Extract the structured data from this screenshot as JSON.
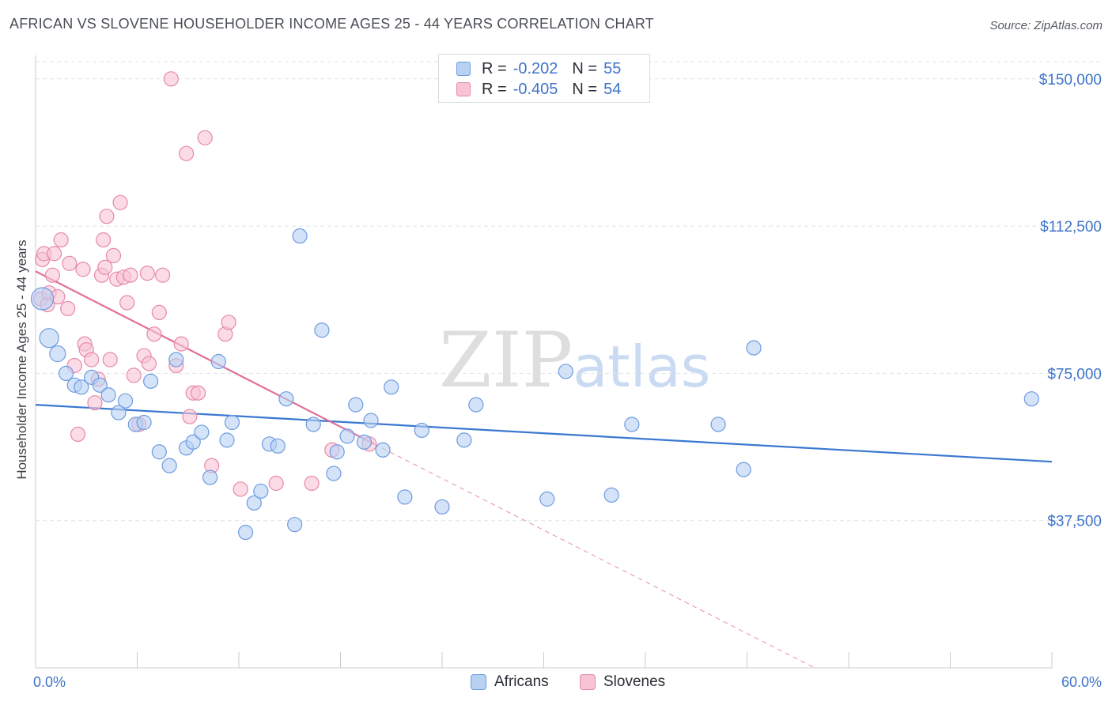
{
  "title": "AFRICAN VS SLOVENE HOUSEHOLDER INCOME AGES 25 - 44 YEARS CORRELATION CHART",
  "source": "Source: ZipAtlas.com",
  "watermark": {
    "zip": "ZIP",
    "atlas": "atlas"
  },
  "legend": {
    "rows": [
      {
        "r_label": "R =",
        "r_value": "-0.202",
        "n_label": "N =",
        "n_value": "55"
      },
      {
        "r_label": "R =",
        "r_value": "-0.405",
        "n_label": "N =",
        "n_value": "54"
      }
    ]
  },
  "bottom_legend": [
    "Africans",
    "Slovenes"
  ],
  "colors": {
    "africans_fill": "#b8d1f3",
    "africans_stroke": "#6d9be0",
    "africans_line": "#3a78d0",
    "slovenes_fill": "#f8c3d4",
    "slovenes_stroke": "#e68aa8",
    "slovenes_line": "#e0709a",
    "tick_label": "#3f74c9",
    "grid": "#dfe2e6"
  },
  "chart_data": {
    "type": "scatter",
    "title": "AFRICAN VS SLOVENE HOUSEHOLDER INCOME AGES 25 - 44 YEARS CORRELATION CHART",
    "xlabel": "",
    "ylabel": "Householder Income Ages 25 - 44 years",
    "xlim": [
      0,
      60
    ],
    "ylim": [
      0,
      156000
    ],
    "x_tick_labels": [
      "0.0%",
      "60.0%"
    ],
    "y_ticks": [
      37500,
      75000,
      112500,
      150000
    ],
    "y_tick_labels": [
      "$37,500",
      "$75,000",
      "$112,500",
      "$150,000"
    ],
    "grid": true,
    "legend_position": "top-center",
    "series": [
      {
        "name": "Africans",
        "r": -0.202,
        "n": 55,
        "trend": {
          "x": [
            0,
            60
          ],
          "y": [
            67000,
            52500
          ]
        },
        "points": [
          [
            0.4,
            94000
          ],
          [
            0.8,
            84000
          ],
          [
            1.3,
            80000
          ],
          [
            1.8,
            75000
          ],
          [
            2.3,
            72000
          ],
          [
            2.7,
            71500
          ],
          [
            3.3,
            74000
          ],
          [
            3.8,
            72000
          ],
          [
            4.3,
            69500
          ],
          [
            4.9,
            65000
          ],
          [
            5.3,
            68000
          ],
          [
            5.9,
            62000
          ],
          [
            6.4,
            62500
          ],
          [
            6.8,
            73000
          ],
          [
            7.3,
            55000
          ],
          [
            7.9,
            51500
          ],
          [
            8.3,
            78500
          ],
          [
            8.9,
            56000
          ],
          [
            9.3,
            57500
          ],
          [
            9.8,
            60000
          ],
          [
            10.3,
            48500
          ],
          [
            10.8,
            78000
          ],
          [
            11.3,
            58000
          ],
          [
            11.6,
            62500
          ],
          [
            12.4,
            34500
          ],
          [
            12.9,
            42000
          ],
          [
            13.3,
            45000
          ],
          [
            13.8,
            57000
          ],
          [
            14.3,
            56500
          ],
          [
            14.8,
            68500
          ],
          [
            15.3,
            36500
          ],
          [
            15.6,
            110000
          ],
          [
            16.4,
            62000
          ],
          [
            16.9,
            86000
          ],
          [
            17.6,
            49500
          ],
          [
            17.8,
            55000
          ],
          [
            18.4,
            59000
          ],
          [
            18.9,
            67000
          ],
          [
            19.4,
            57500
          ],
          [
            19.8,
            63000
          ],
          [
            20.5,
            55500
          ],
          [
            21.0,
            71500
          ],
          [
            21.8,
            43500
          ],
          [
            22.8,
            60500
          ],
          [
            24.0,
            41000
          ],
          [
            25.3,
            58000
          ],
          [
            26.0,
            67000
          ],
          [
            30.2,
            43000
          ],
          [
            31.3,
            75500
          ],
          [
            34.0,
            44000
          ],
          [
            35.2,
            62000
          ],
          [
            40.3,
            62000
          ],
          [
            41.8,
            50500
          ],
          [
            42.4,
            81500
          ],
          [
            58.8,
            68500
          ]
        ]
      },
      {
        "name": "Slovenes",
        "r": -0.405,
        "n": 54,
        "trend": {
          "x": [
            0,
            20
          ],
          "y": [
            101000,
            57000
          ]
        },
        "trend_extended": {
          "x": [
            20,
            46
          ],
          "y": [
            57000,
            0
          ]
        },
        "points": [
          [
            0.3,
            94000
          ],
          [
            0.4,
            104000
          ],
          [
            0.5,
            105500
          ],
          [
            0.7,
            92500
          ],
          [
            0.8,
            95500
          ],
          [
            1.0,
            100000
          ],
          [
            1.1,
            105500
          ],
          [
            1.3,
            94500
          ],
          [
            1.5,
            109000
          ],
          [
            1.9,
            91500
          ],
          [
            2.0,
            103000
          ],
          [
            2.3,
            77000
          ],
          [
            2.5,
            59500
          ],
          [
            2.8,
            101500
          ],
          [
            2.9,
            82500
          ],
          [
            3.0,
            81000
          ],
          [
            3.3,
            78500
          ],
          [
            3.5,
            67500
          ],
          [
            3.7,
            73500
          ],
          [
            3.9,
            100000
          ],
          [
            4.0,
            109000
          ],
          [
            4.1,
            102000
          ],
          [
            4.2,
            115000
          ],
          [
            4.4,
            78500
          ],
          [
            4.6,
            105000
          ],
          [
            4.8,
            99000
          ],
          [
            5.0,
            118500
          ],
          [
            5.2,
            99500
          ],
          [
            5.4,
            93000
          ],
          [
            5.6,
            100000
          ],
          [
            5.8,
            74500
          ],
          [
            6.1,
            62000
          ],
          [
            6.4,
            79500
          ],
          [
            6.6,
            100500
          ],
          [
            6.7,
            77500
          ],
          [
            7.0,
            85000
          ],
          [
            7.3,
            90500
          ],
          [
            7.5,
            100000
          ],
          [
            8.0,
            150000
          ],
          [
            8.3,
            77000
          ],
          [
            8.6,
            82500
          ],
          [
            8.9,
            131000
          ],
          [
            9.1,
            64000
          ],
          [
            9.3,
            70000
          ],
          [
            9.6,
            70000
          ],
          [
            10.0,
            135000
          ],
          [
            10.4,
            51500
          ],
          [
            11.2,
            85000
          ],
          [
            11.4,
            88000
          ],
          [
            12.1,
            45500
          ],
          [
            14.2,
            47000
          ],
          [
            16.3,
            47000
          ],
          [
            17.5,
            55500
          ],
          [
            19.7,
            57000
          ]
        ]
      }
    ]
  }
}
